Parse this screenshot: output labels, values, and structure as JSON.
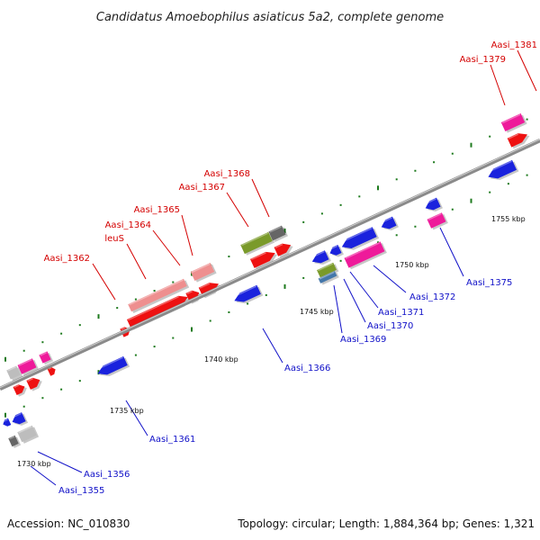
{
  "title": "Candidatus Amoebophilus asiaticus 5a2, complete genome",
  "footer": {
    "accession": "Accession: NC_010830",
    "topology": "Topology: circular; Length: 1,884,364 bp; Genes: 1,321"
  },
  "colors": {
    "backbone": "#8c8c8c",
    "forward_label": "#d40000",
    "reverse_label": "#1010c8",
    "red": "#ee1111",
    "salmon": "#ee8f8f",
    "blue": "#1a22dd",
    "magenta": "#ee1a9a",
    "olive": "#7a9a2a",
    "gray": "#bdbdbd",
    "darkgray": "#666666",
    "steel": "#4477aa",
    "tick_green": "#1d7a1d"
  },
  "scale_labels": [
    "1730 kbp",
    "1735 kbp",
    "1740 kbp",
    "1745 kbp",
    "1750 kbp",
    "1755 kbp"
  ],
  "gene_labels": {
    "forward": [
      "Aasi_1362",
      "leuS",
      "Aasi_1364",
      "Aasi_1365",
      "Aasi_1367",
      "Aasi_1368",
      "Aasi_1379",
      "Aasi_1381"
    ],
    "reverse": [
      "Aasi_1355",
      "Aasi_1356",
      "Aasi_1361",
      "Aasi_1366",
      "Aasi_1369",
      "Aasi_1370",
      "Aasi_1371",
      "Aasi_1372",
      "Aasi_1375"
    ]
  }
}
